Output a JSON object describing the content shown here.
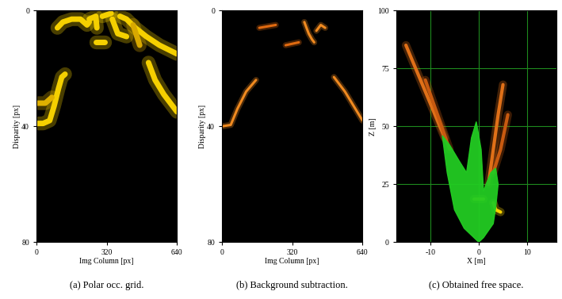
{
  "chart_data": [
    {
      "type": "line",
      "title": "(a) Polar occ. grid.",
      "x_label": "Img Column [px]",
      "y_label": "Disparity [px]",
      "xlim": [
        0,
        640
      ],
      "xticks": [
        0,
        320,
        640
      ],
      "ylim": [
        80,
        0
      ],
      "yticks": [
        0,
        40,
        80
      ],
      "grid": false,
      "series": [
        {
          "type": "line",
          "color": "#f5d000",
          "x": [
            0,
            30,
            60,
            80,
            100,
            115,
            130
          ],
          "values": [
            39,
            39,
            38,
            33,
            27,
            23,
            22
          ]
        },
        {
          "type": "line",
          "color": "#e0b000",
          "x": [
            0,
            40,
            70
          ],
          "values": [
            32,
            32,
            30
          ]
        },
        {
          "type": "line",
          "color": "#f5d000",
          "x": [
            95,
            120,
            160,
            200,
            230,
            240
          ],
          "values": [
            6,
            4,
            3,
            3,
            5,
            4
          ]
        },
        {
          "type": "line",
          "color": "#f5d000",
          "x": [
            240,
            270,
            275
          ],
          "values": [
            3,
            2,
            6
          ]
        },
        {
          "type": "line",
          "color": "#f5d000",
          "x": [
            270,
            310
          ],
          "values": [
            11,
            11
          ]
        },
        {
          "type": "line",
          "color": "#f5d000",
          "x": [
            300,
            340
          ],
          "values": [
            2,
            1
          ]
        },
        {
          "type": "line",
          "color": "#f5d000",
          "x": [
            345,
            370,
            410
          ],
          "values": [
            3,
            8,
            9
          ]
        },
        {
          "type": "line",
          "color": "#f5d000",
          "x": [
            380,
            410,
            450,
            500,
            560,
            640
          ],
          "values": [
            2,
            3,
            6,
            9,
            12,
            15
          ]
        },
        {
          "type": "line",
          "color": "#d8a800",
          "x": [
            440,
            470
          ],
          "values": [
            5,
            12
          ]
        },
        {
          "type": "line",
          "color": "#f5d000",
          "x": [
            510,
            540,
            580,
            640
          ],
          "values": [
            18,
            24,
            29,
            35
          ]
        }
      ]
    },
    {
      "type": "line",
      "title": "(b) Background subtraction.",
      "x_label": "Img Column [px]",
      "y_label": "Disparity [px]",
      "xlim": [
        0,
        640
      ],
      "xticks": [
        0,
        320,
        640
      ],
      "ylim": [
        80,
        0
      ],
      "yticks": [
        0,
        40,
        80
      ],
      "grid": false,
      "series": [
        {
          "type": "line",
          "color": "#f08a20",
          "x": [
            0,
            40,
            70,
            110,
            155
          ],
          "values": [
            40,
            39.5,
            34,
            28,
            24
          ]
        },
        {
          "type": "line",
          "color": "#e06a10",
          "x": [
            170,
            245
          ],
          "values": [
            6,
            5
          ]
        },
        {
          "type": "line",
          "color": "#e06a10",
          "x": [
            290,
            350
          ],
          "values": [
            12,
            11
          ]
        },
        {
          "type": "line",
          "color": "#f08a20",
          "x": [
            375,
            395,
            410,
            420
          ],
          "values": [
            4,
            8,
            10,
            11
          ]
        },
        {
          "type": "line",
          "color": "#f08a20",
          "x": [
            430,
            450,
            470
          ],
          "values": [
            7,
            5,
            6
          ]
        },
        {
          "type": "line",
          "color": "#f08a20",
          "x": [
            510,
            560,
            600,
            640
          ],
          "values": [
            23,
            28,
            33,
            38
          ]
        }
      ]
    },
    {
      "type": "line",
      "title": "(c) Obtained free space.",
      "x_label": "X [m]",
      "y_label": "Z [m]",
      "xlim": [
        -17,
        16
      ],
      "xticks": [
        -10,
        0,
        10
      ],
      "ylim": [
        0,
        100
      ],
      "yticks": [
        0,
        25,
        50,
        75,
        100
      ],
      "grid": true,
      "series": [
        {
          "type": "line",
          "color": "#e07018",
          "x": [
            -7,
            -9,
            -11,
            -13,
            -15
          ],
          "values": [
            45,
            55,
            65,
            75,
            85
          ]
        },
        {
          "type": "line",
          "color": "#c85a10",
          "x": [
            -6,
            -8,
            -11
          ],
          "values": [
            40,
            52,
            70
          ]
        },
        {
          "type": "line",
          "color": "#e07018",
          "x": [
            2,
            3,
            4,
            5
          ],
          "values": [
            25,
            40,
            55,
            68
          ]
        },
        {
          "type": "line",
          "color": "#c85a10",
          "x": [
            3,
            4.5,
            6
          ],
          "values": [
            30,
            40,
            55
          ]
        },
        {
          "type": "fill",
          "color": "#22cc22",
          "x": [
            0,
            -3,
            -5,
            -6.5,
            -7.5,
            -6,
            -4,
            -2.5,
            -1.5,
            -0.5,
            0.5,
            1,
            1.5,
            2.5,
            3.5,
            4,
            3.5,
            3,
            1,
            0
          ],
          "values": [
            0,
            6,
            14,
            30,
            46,
            42,
            35,
            30,
            45,
            52,
            40,
            22,
            25,
            30,
            32,
            25,
            15,
            8,
            2,
            0
          ]
        },
        {
          "type": "line",
          "color": "#f5d000",
          "x": [
            -1,
            1
          ],
          "values": [
            18.5,
            18.5
          ]
        },
        {
          "type": "line",
          "color": "#f5d000",
          "x": [
            3,
            3.5,
            4.5
          ],
          "values": [
            17,
            14,
            13
          ]
        }
      ]
    }
  ]
}
